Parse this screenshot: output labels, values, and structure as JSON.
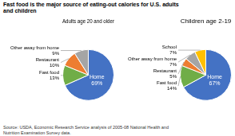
{
  "chart_data": [
    {
      "type": "pie",
      "title": "Fast food is the major source of eating-out calories for U.S. adults\nand children",
      "source": "Source: USDA, Economic Research Service analysis of 2005-08 National Health and\nNutrition Examination Survey data.",
      "subtitle": "Adults age 20 and older",
      "categories": [
        "Home",
        "Fast food",
        "Restaurant",
        "Other away from home"
      ],
      "values": [
        69,
        13,
        10,
        9
      ],
      "value_labels": [
        "69%",
        "13%",
        "10%",
        "9%"
      ],
      "colors": [
        "#4472C4",
        "#70AD47",
        "#ED7D31",
        "#A5A5A5"
      ],
      "data_labels": true
    },
    {
      "type": "pie",
      "subtitle": "Children age 2-19",
      "categories": [
        "Home",
        "Fast food",
        "Restaurant",
        "Other away from home",
        "School"
      ],
      "values": [
        67,
        14,
        5,
        7,
        7
      ],
      "value_labels": [
        "67%",
        "14%",
        "5%",
        "7%",
        "7%"
      ],
      "colors": [
        "#4472C4",
        "#70AD47",
        "#ED7D31",
        "#A5A5A5",
        "#FFC000"
      ],
      "data_labels": true
    }
  ]
}
